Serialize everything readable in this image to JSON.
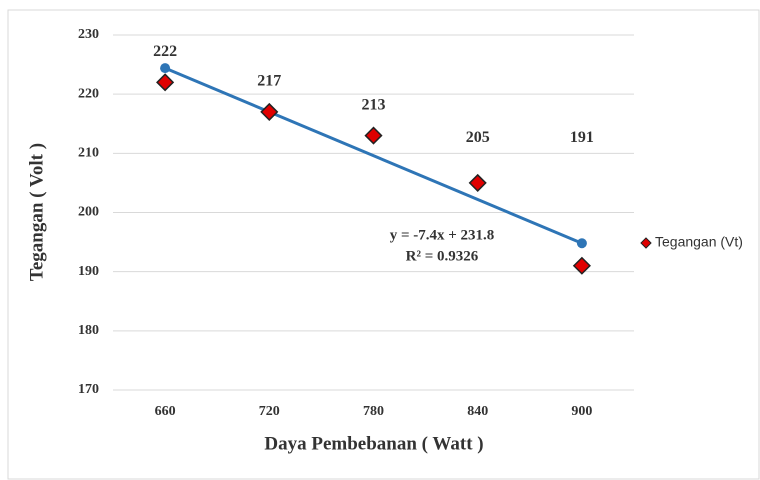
{
  "chart_data": {
    "type": "scatter",
    "x_label": "Daya Pembebanan ( Watt )",
    "y_label": "Tegangan ( Volt )",
    "categories": [
      "660",
      "720",
      "780",
      "840",
      "900"
    ],
    "series": [
      {
        "name": "Tegangan (Vt)",
        "color": "#e00000",
        "values": [
          222,
          217,
          213,
          205,
          191
        ]
      }
    ],
    "ylim": [
      170,
      230
    ],
    "yticks": [
      170,
      180,
      190,
      200,
      210,
      220,
      230
    ],
    "grid": true,
    "legend": "right",
    "trendline": {
      "equation": "y = -7.4x + 231.8",
      "r2": "R² = 0.9326",
      "slope": -7.4,
      "intercept": 231.8,
      "color": "#2e75b6"
    }
  }
}
